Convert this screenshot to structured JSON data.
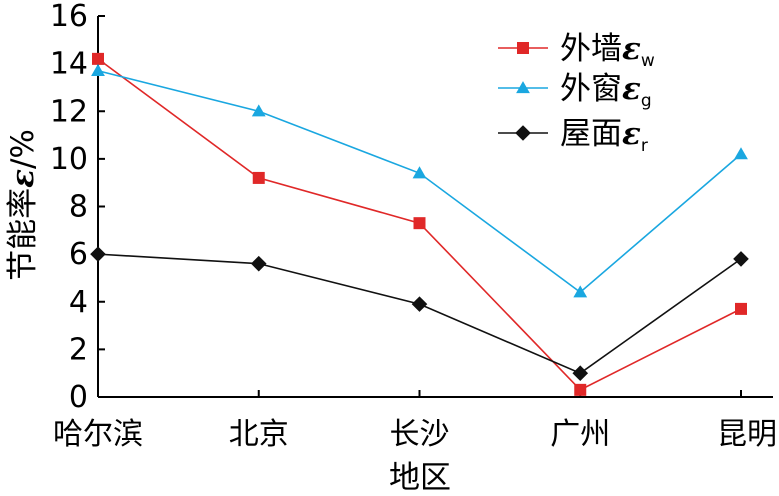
{
  "chart_data": {
    "type": "line",
    "categories": [
      "哈尔滨",
      "北京",
      "长沙",
      "广州",
      "昆明"
    ],
    "xlabel": "地区",
    "ylabel": {
      "text": "节能率",
      "symbol": "ε",
      "unit": "/%"
    },
    "ylim": [
      0,
      16
    ],
    "yticks": [
      0,
      2,
      4,
      6,
      8,
      10,
      12,
      14,
      16
    ],
    "grid": false,
    "legend_position": "top-right",
    "series": [
      {
        "key": "wall",
        "name": "外墙",
        "symbol": "ε",
        "subscript": "w",
        "color": "#e02828",
        "marker": "square",
        "values": [
          14.2,
          9.2,
          7.3,
          0.3,
          3.7
        ]
      },
      {
        "key": "window",
        "name": "外窗",
        "symbol": "ε",
        "subscript": "g",
        "color": "#1aa7e0",
        "marker": "triangle",
        "values": [
          13.7,
          12.0,
          9.4,
          4.4,
          10.2
        ]
      },
      {
        "key": "roof",
        "name": "屋面",
        "symbol": "ε",
        "subscript": "r",
        "color": "#111111",
        "marker": "diamond",
        "values": [
          6.0,
          5.6,
          3.9,
          1.0,
          5.8
        ]
      }
    ]
  }
}
